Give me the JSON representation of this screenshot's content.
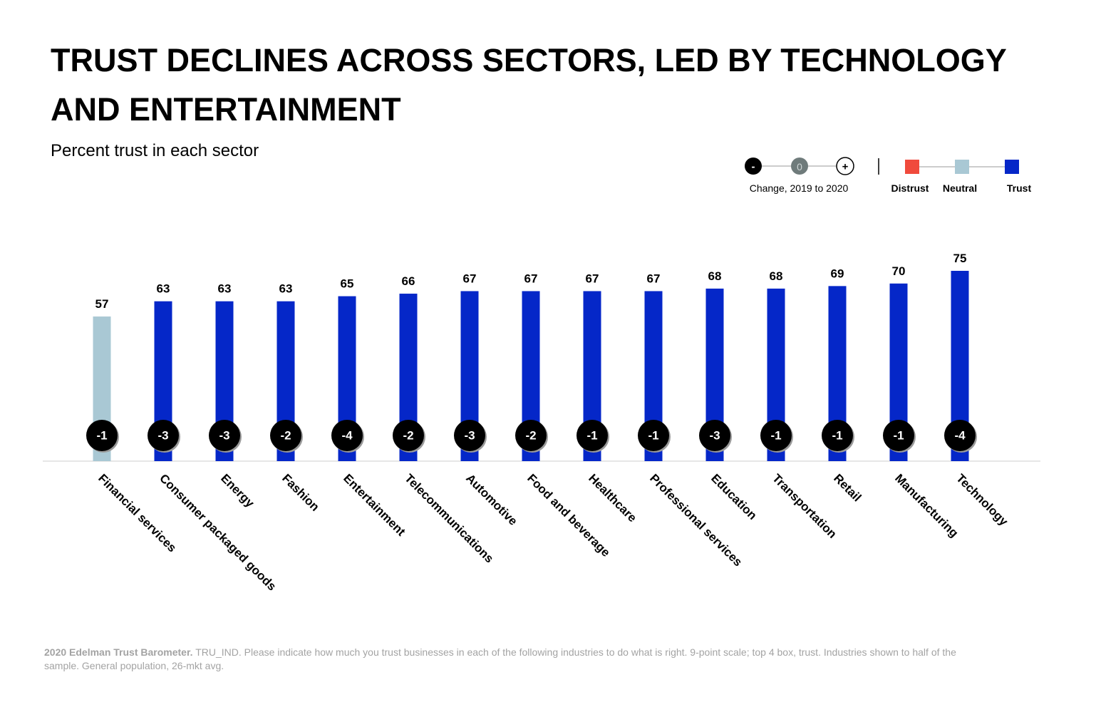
{
  "chart_data": {
    "type": "bar",
    "title": [
      "TRUST DECLINES ACROSS SECTORS, LED BY TECHNOLOGY",
      "AND ENTERTAINMENT"
    ],
    "subtitle": "Percent trust in each sector",
    "categories": [
      "Financial services",
      "Consumer packaged goods",
      "Energy",
      "Fashion",
      "Entertainment",
      "Telecommunications",
      "Automotive",
      "Food and beverage",
      "Healthcare",
      "Professional services",
      "Education",
      "Transportation",
      "Retail",
      "Manufacturing",
      "Technology"
    ],
    "values": [
      57,
      63,
      63,
      63,
      65,
      66,
      67,
      67,
      67,
      67,
      68,
      68,
      69,
      70,
      75
    ],
    "colors": [
      "#a9c8d4",
      "#0527c8",
      "#0527c8",
      "#0527c8",
      "#0527c8",
      "#0527c8",
      "#0527c8",
      "#0527c8",
      "#0527c8",
      "#0527c8",
      "#0527c8",
      "#0527c8",
      "#0527c8",
      "#0527c8",
      "#0527c8"
    ],
    "changes": [
      -1,
      -3,
      -3,
      -2,
      -4,
      -2,
      -3,
      -2,
      -1,
      -1,
      -3,
      -1,
      -1,
      -1,
      -4
    ],
    "change_legend": {
      "symbols": [
        "-",
        "0",
        "+"
      ],
      "label": "Change, 2019 to 2020"
    },
    "legend": [
      {
        "name": "Distrust",
        "color": "#f04a3c"
      },
      {
        "name": "Neutral",
        "color": "#a9c8d4"
      },
      {
        "name": "Trust",
        "color": "#0527c8"
      }
    ],
    "footnote": {
      "source": "2020 Edelman Trust Barometer.",
      "text": "TRU_IND. Please indicate how much you trust businesses in each of the following industries to do what is right. 9-point scale; top 4 box, trust. Industries shown to half of the sample. General population, 26-mkt avg."
    }
  }
}
